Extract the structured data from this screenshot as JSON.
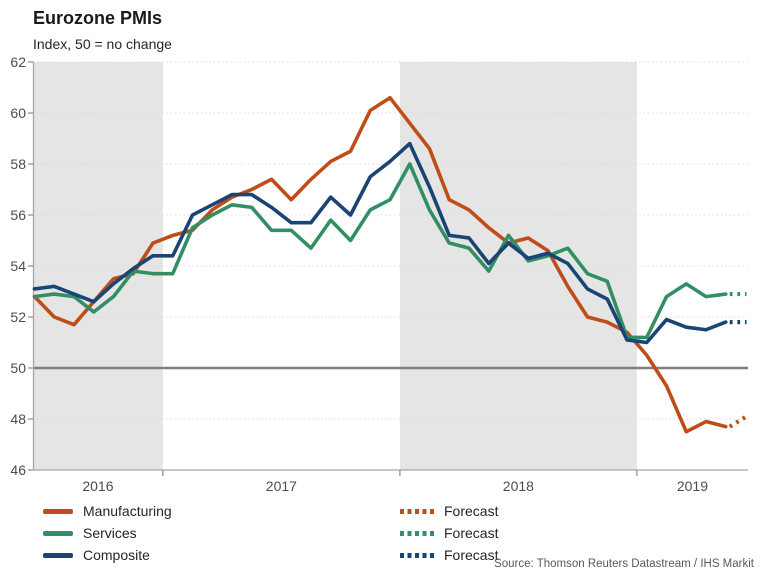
{
  "header": {
    "title": "Eurozone PMIs",
    "subtitle": "Index, 50 = no change"
  },
  "source_note": "Source: Thomson Reuters Datastream / IHS Markit",
  "colors": {
    "manufacturing": "#bf4d1a",
    "services": "#338f63",
    "composite": "#1a4474",
    "year_band": "#e5e5e5",
    "baseline_50": "#7f7f7f",
    "gridline": "#d9d9d9",
    "axis_line": "#a6a6a6",
    "tick_mark": "#8c8c8c",
    "axis_label": "#4d4d4d"
  },
  "legend": {
    "items": [
      {
        "label": "Manufacturing",
        "series": "manufacturing",
        "style": "solid"
      },
      {
        "label": "Services",
        "series": "services",
        "style": "solid"
      },
      {
        "label": "Composite",
        "series": "composite",
        "style": "solid"
      },
      {
        "label": "Forecast",
        "series": "manufacturing",
        "style": "dotted"
      },
      {
        "label": "Forecast",
        "series": "services",
        "style": "dotted"
      },
      {
        "label": "Forecast",
        "series": "composite",
        "style": "dotted"
      }
    ]
  },
  "chart_data": {
    "type": "line",
    "title": "Eurozone PMIs",
    "subtitle": "Index, 50 = no change",
    "x_unit": "month",
    "x_range": [
      "2016-06",
      "2019-05"
    ],
    "forecast_x": "2019-06",
    "x_tick_labels": [
      "2016",
      "2017",
      "2018",
      "2019"
    ],
    "ylim": [
      46,
      62
    ],
    "yticks": [
      46,
      48,
      50,
      52,
      54,
      56,
      58,
      60,
      62
    ],
    "baseline": 50,
    "shaded_year_bands": [
      "2016 (Jun-Dec)",
      "2018"
    ],
    "grid": "dotted horizontal every 2",
    "legend_position": "bottom",
    "series": [
      {
        "name": "Manufacturing",
        "color": "#bf4d1a",
        "values": [
          52.8,
          52.0,
          51.7,
          52.6,
          53.5,
          53.7,
          54.9,
          55.2,
          55.4,
          56.2,
          56.7,
          57.0,
          57.4,
          56.6,
          57.4,
          58.1,
          58.5,
          60.1,
          60.6,
          59.6,
          58.6,
          56.6,
          56.2,
          55.5,
          54.9,
          55.1,
          54.6,
          53.2,
          52.0,
          51.8,
          51.4,
          50.5,
          49.3,
          47.5,
          47.9,
          47.7
        ],
        "forecast_value": 48.1
      },
      {
        "name": "Services",
        "color": "#338f63",
        "values": [
          52.8,
          52.9,
          52.8,
          52.2,
          52.8,
          53.8,
          53.7,
          53.7,
          55.5,
          56.0,
          56.4,
          56.3,
          55.4,
          55.4,
          54.7,
          55.8,
          55.0,
          56.2,
          56.6,
          58.0,
          56.2,
          54.9,
          54.7,
          53.8,
          55.2,
          54.2,
          54.4,
          54.7,
          53.7,
          53.4,
          51.2,
          51.2,
          52.8,
          53.3,
          52.8,
          52.9
        ],
        "forecast_value": 52.9
      },
      {
        "name": "Composite",
        "color": "#1a4474",
        "values": [
          53.1,
          53.2,
          52.9,
          52.6,
          53.3,
          53.9,
          54.4,
          54.4,
          56.0,
          56.4,
          56.8,
          56.8,
          56.3,
          55.7,
          55.7,
          56.7,
          56.0,
          57.5,
          58.1,
          58.8,
          57.1,
          55.2,
          55.1,
          54.1,
          54.9,
          54.3,
          54.5,
          54.1,
          53.1,
          52.7,
          51.1,
          51.0,
          51.9,
          51.6,
          51.5,
          51.8
        ],
        "forecast_value": 51.8
      }
    ]
  }
}
